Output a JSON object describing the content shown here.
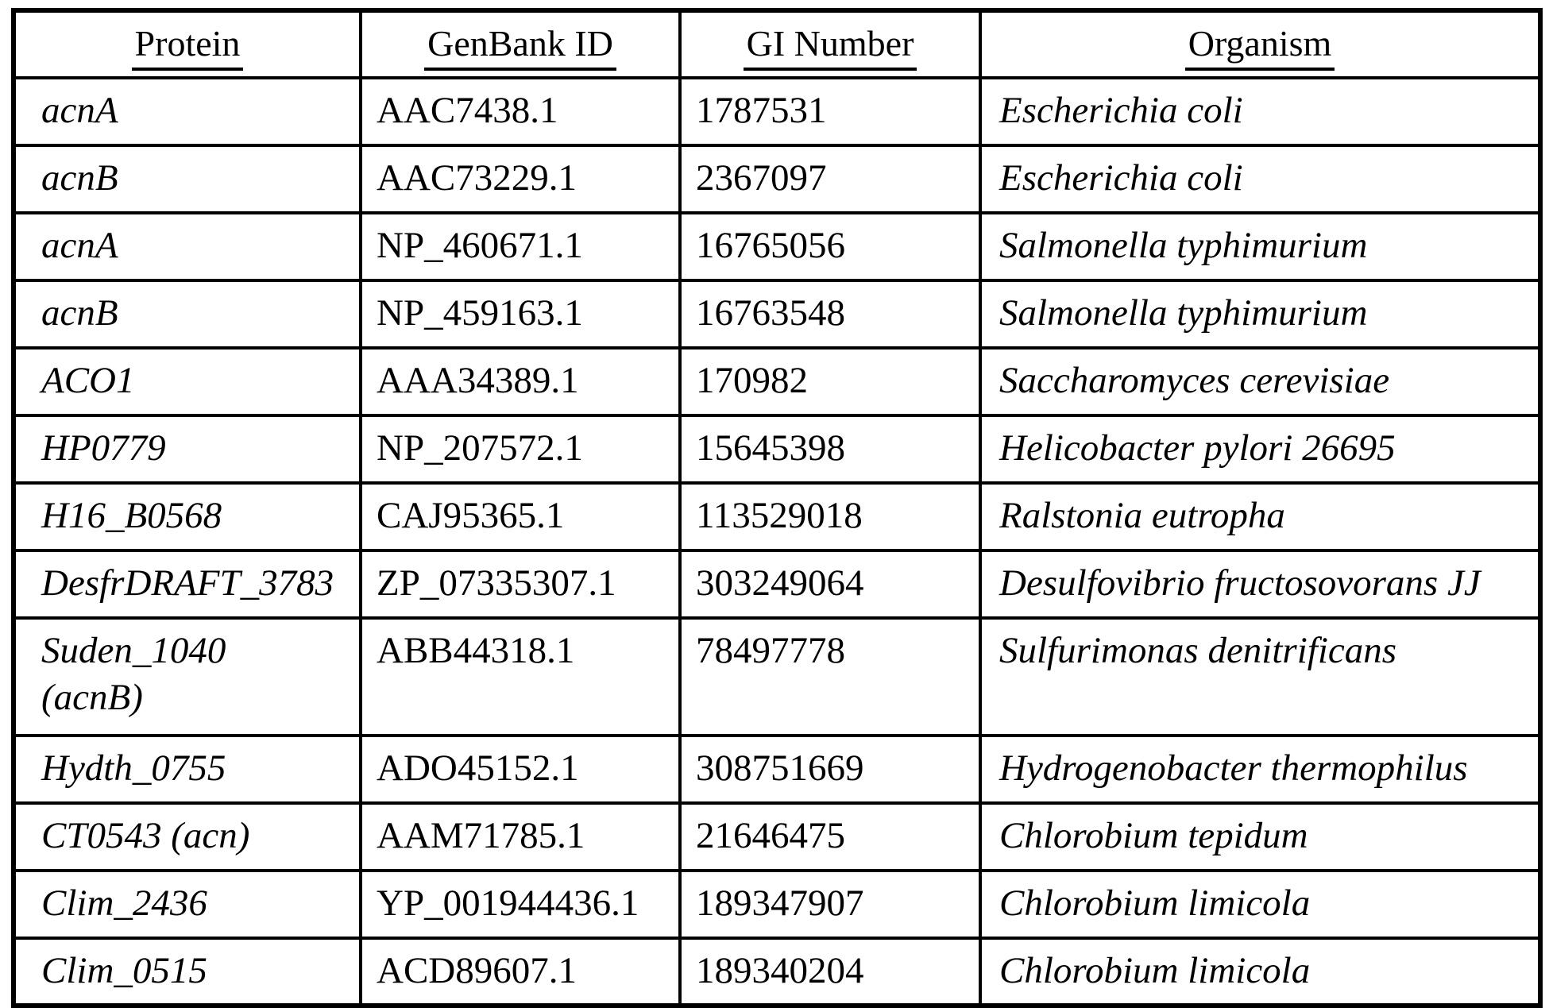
{
  "table": {
    "columns": [
      "Protein",
      "GenBank ID",
      "GI Number",
      "Organism"
    ],
    "column_keys": [
      "protein",
      "genbank_id",
      "gi_number",
      "organism"
    ],
    "rows": [
      {
        "protein": "acnA",
        "genbank_id": "AAC7438.1",
        "gi_number": "1787531",
        "organism": "Escherichia coli"
      },
      {
        "protein": "acnB",
        "genbank_id": "AAC73229.1",
        "gi_number": "2367097",
        "organism": "Escherichia coli"
      },
      {
        "protein": "acnA",
        "genbank_id": "NP_460671.1",
        "gi_number": "16765056",
        "organism": "Salmonella typhimurium"
      },
      {
        "protein": "acnB",
        "genbank_id": "NP_459163.1",
        "gi_number": "16763548",
        "organism": "Salmonella typhimurium"
      },
      {
        "protein": "ACO1",
        "genbank_id": "AAA34389.1",
        "gi_number": "170982",
        "organism": "Saccharomyces cerevisiae"
      },
      {
        "protein": "HP0779",
        "genbank_id": "NP_207572.1",
        "gi_number": "15645398",
        "organism": "Helicobacter pylori 26695"
      },
      {
        "protein": "H16_B0568",
        "genbank_id": "CAJ95365.1",
        "gi_number": "113529018",
        "organism": "Ralstonia eutropha"
      },
      {
        "protein": "DesfrDRAFT_3783",
        "genbank_id": "ZP_07335307.1",
        "gi_number": "303249064",
        "organism": "Desulfovibrio fructosovorans JJ"
      },
      {
        "protein": "Suden_1040\n(acnB)",
        "genbank_id": "ABB44318.1",
        "gi_number": "78497778",
        "organism": "Sulfurimonas denitrificans"
      },
      {
        "protein": "Hydth_0755",
        "genbank_id": "ADO45152.1",
        "gi_number": "308751669",
        "organism": "Hydrogenobacter thermophilus"
      },
      {
        "protein": "CT0543 (acn)",
        "genbank_id": "AAM71785.1",
        "gi_number": "21646475",
        "organism": "Chlorobium tepidum"
      },
      {
        "protein": "Clim_2436",
        "genbank_id": "YP_001944436.1",
        "gi_number": "189347907",
        "organism": "Chlorobium limicola"
      },
      {
        "protein": "Clim_0515",
        "genbank_id": "ACD89607.1",
        "gi_number": "189340204",
        "organism": "Chlorobium limicola"
      }
    ]
  }
}
